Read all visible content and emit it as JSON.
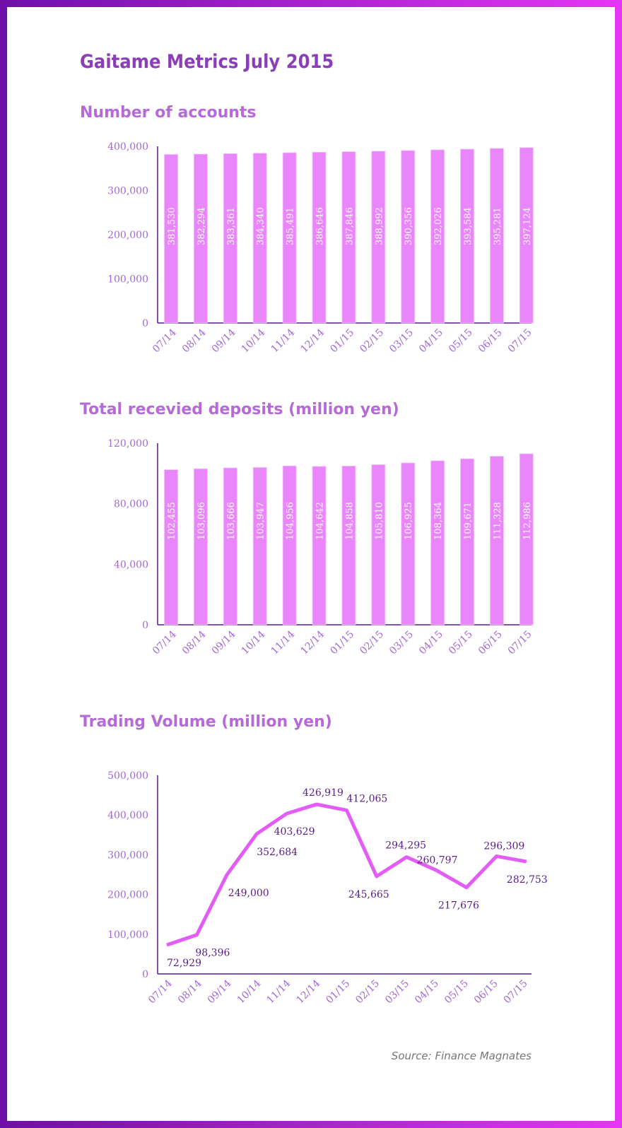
{
  "title": "Gaitame Metrics July 2015",
  "source": "Source: Finance Magnates",
  "colors": {
    "bar": "#ea86fb",
    "line": "#e35cf6",
    "axis": "#5a1a8a"
  },
  "chart_data": [
    {
      "type": "bar",
      "title": "Number of accounts",
      "categories": [
        "07/14",
        "08/14",
        "09/14",
        "10/14",
        "11/14",
        "12/14",
        "01/15",
        "02/15",
        "03/15",
        "04/15",
        "05/15",
        "06/15",
        "07/15"
      ],
      "values": [
        381530,
        382294,
        383361,
        384340,
        385491,
        386646,
        387846,
        388992,
        390356,
        392026,
        393584,
        395281,
        397124
      ],
      "labels": [
        "381,530",
        "382,294",
        "383,361",
        "384,340",
        "385,491",
        "386,646",
        "387,846",
        "388,992",
        "390,356",
        "392,026",
        "393,584",
        "395,281",
        "397,124"
      ],
      "yticks": [
        0,
        100000,
        200000,
        300000,
        400000
      ],
      "ytick_labels": [
        "0",
        "100,000",
        "200,000",
        "300,000",
        "400,000"
      ],
      "ylim": [
        0,
        400000
      ]
    },
    {
      "type": "bar",
      "title": "Total recevied deposits (million yen)",
      "categories": [
        "07/14",
        "08/14",
        "09/14",
        "10/14",
        "11/14",
        "12/14",
        "01/15",
        "02/15",
        "03/15",
        "04/15",
        "05/15",
        "06/15",
        "07/15"
      ],
      "values": [
        102455,
        103096,
        103666,
        103947,
        104956,
        104642,
        104858,
        105810,
        106925,
        108364,
        109671,
        111328,
        112986
      ],
      "labels": [
        "102,455",
        "103,096",
        "103,666",
        "103,947",
        "104,956",
        "104,642",
        "104,858",
        "105,810",
        "106,925",
        "108,364",
        "109,671",
        "111,328",
        "112,986"
      ],
      "yticks": [
        0,
        40000,
        80000,
        120000
      ],
      "ytick_labels": [
        "0",
        "40,000",
        "80,000",
        "120,000"
      ],
      "ylim": [
        0,
        120000
      ]
    },
    {
      "type": "line",
      "title": "Trading Volume (million yen)",
      "categories": [
        "07/14",
        "08/14",
        "09/14",
        "10/14",
        "11/14",
        "12/14",
        "01/15",
        "02/15",
        "03/15",
        "04/15",
        "05/15",
        "06/15",
        "07/15"
      ],
      "values": [
        72929,
        98396,
        249000,
        352684,
        403629,
        426919,
        412065,
        245665,
        294295,
        260797,
        217676,
        296309,
        282753
      ],
      "labels": [
        "72,929",
        "98,396",
        "249,000",
        "352,684",
        "403,629",
        "426,919",
        "412,065",
        "245,665",
        "294,295",
        "260,797",
        "217,676",
        "296,309",
        "282,753"
      ],
      "yticks": [
        0,
        100000,
        200000,
        300000,
        400000,
        500000
      ],
      "ytick_labels": [
        "0",
        "100,000",
        "200,000",
        "300,000",
        "400,000",
        "500,000"
      ],
      "ylim": [
        0,
        500000
      ]
    }
  ]
}
